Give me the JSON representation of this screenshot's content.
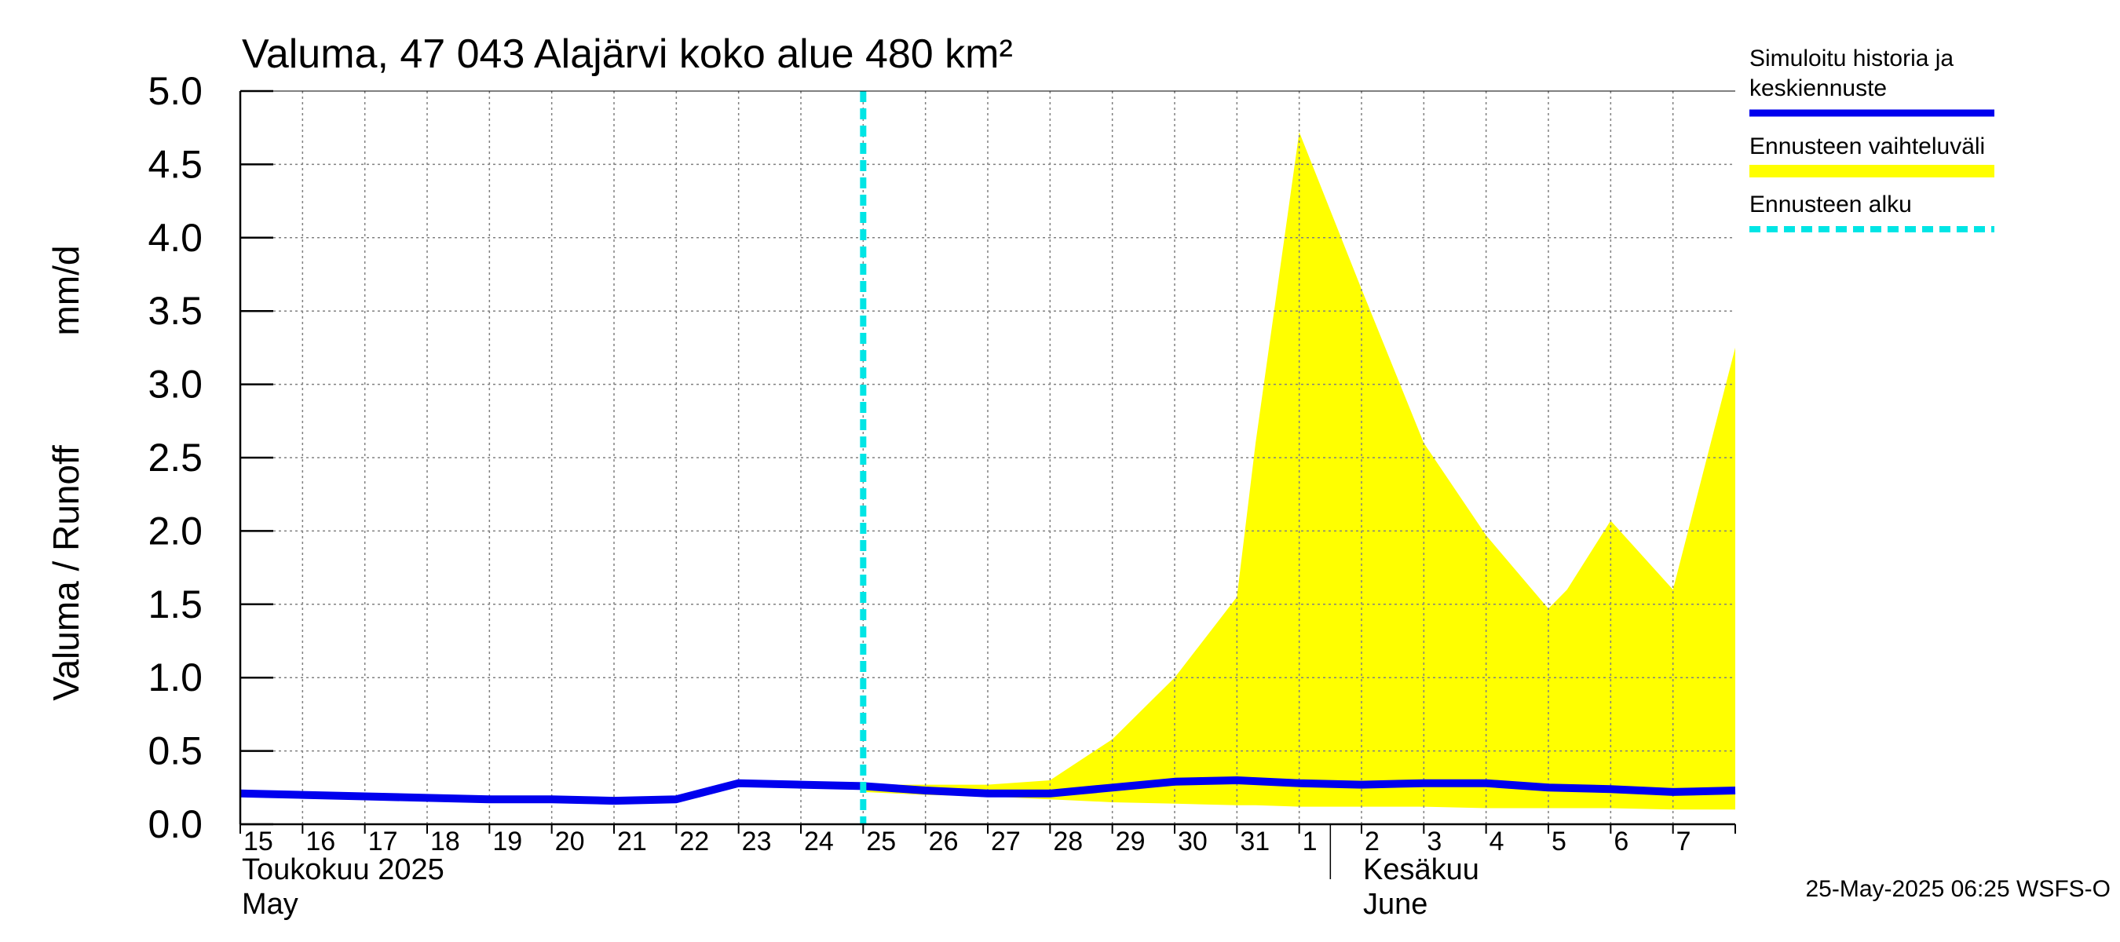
{
  "chart_data": {
    "type": "area",
    "title": "Valuma, 47 043 Alajärvi koko alue 480 km²",
    "ylabel_left": "Valuma / Runoff",
    "ylabel_right": "mm/d",
    "ylim": [
      0.0,
      5.0
    ],
    "yticks": [
      0.0,
      0.5,
      1.0,
      1.5,
      2.0,
      2.5,
      3.0,
      3.5,
      4.0,
      4.5,
      5.0
    ],
    "ytick_labels": [
      "0.0",
      "0.5",
      "1.0",
      "1.5",
      "2.0",
      "2.5",
      "3.0",
      "3.5",
      "4.0",
      "4.5",
      "5.0"
    ],
    "xlim": [
      0,
      24
    ],
    "x_tick_labels": [
      "15",
      "16",
      "17",
      "18",
      "19",
      "20",
      "21",
      "22",
      "23",
      "24",
      "25",
      "26",
      "27",
      "28",
      "29",
      "30",
      "31",
      "1",
      "2",
      "3",
      "4",
      "5",
      "6",
      "7"
    ],
    "month_labels": [
      {
        "fi": "Toukokuu  2025",
        "en": "May",
        "x": 0
      },
      {
        "fi": "Kesäkuu",
        "en": "June",
        "x": 18
      }
    ],
    "month_divider_x": 17.5,
    "forecast_start_x": 10,
    "series": [
      {
        "name": "Simuloitu historia ja keskiennuste",
        "color": "#0000ee",
        "x": [
          0,
          1,
          2,
          3,
          4,
          5,
          6,
          7,
          8,
          9,
          10,
          11,
          12,
          13,
          14,
          15,
          16,
          17,
          18,
          19,
          20,
          21,
          22,
          23,
          24
        ],
        "y": [
          0.21,
          0.2,
          0.19,
          0.18,
          0.17,
          0.17,
          0.16,
          0.17,
          0.28,
          0.27,
          0.26,
          0.23,
          0.21,
          0.21,
          0.25,
          0.29,
          0.3,
          0.28,
          0.27,
          0.28,
          0.28,
          0.25,
          0.24,
          0.22,
          0.23
        ]
      }
    ],
    "band": {
      "name": "Ennusteen vaihteluväli",
      "color": "#ffff00",
      "x": [
        10,
        11,
        12,
        13,
        14,
        15,
        16,
        16.3,
        17,
        18,
        19,
        20,
        21,
        21.3,
        22,
        23,
        24
      ],
      "upper": [
        0.27,
        0.27,
        0.27,
        0.3,
        0.58,
        1.0,
        1.55,
        2.6,
        4.72,
        3.65,
        2.6,
        1.97,
        1.47,
        1.6,
        2.07,
        1.6,
        3.25
      ],
      "lower": [
        0.22,
        0.2,
        0.19,
        0.17,
        0.15,
        0.14,
        0.13,
        0.13,
        0.12,
        0.12,
        0.12,
        0.11,
        0.11,
        0.11,
        0.11,
        0.1,
        0.1
      ]
    },
    "legend": [
      {
        "label_lines": [
          "Simuloitu historia ja",
          "keskiennuste"
        ],
        "color": "#0000ee",
        "style": "solid"
      },
      {
        "label_lines": [
          "Ennusteen vaihteluväli"
        ],
        "color": "#ffff00",
        "style": "band"
      },
      {
        "label_lines": [
          "Ennusteen alku"
        ],
        "color": "#00e5e5",
        "style": "dashed"
      }
    ],
    "colors": {
      "grid": "#808080",
      "axis": "#000000",
      "median": "#0000ee",
      "band": "#ffff00",
      "forecast_start": "#00e5e5"
    },
    "footer": "25-May-2025 06:25 WSFS-O"
  }
}
